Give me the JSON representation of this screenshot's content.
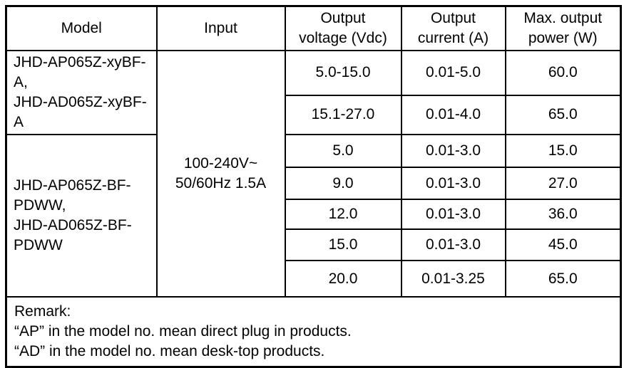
{
  "document": {
    "table": {
      "headers": {
        "model": "Model",
        "input": "Input",
        "output_voltage": "Output\nvoltage (Vdc)",
        "output_current": "Output\ncurrent (A)",
        "max_output_power": "Max. output\npower (W)"
      },
      "model_groups": [
        {
          "models": "JHD-AP065Z-xyBF-A,\nJHD-AD065Z-xyBF-A"
        },
        {
          "models": "JHD-AP065Z-BF-PDWW,\nJHD-AD065Z-BF-PDWW"
        }
      ],
      "input_value": "100-240V~\n50/60Hz 1.5A",
      "rows": [
        {
          "voltage": "5.0-15.0",
          "current": "0.01-5.0",
          "power": "60.0"
        },
        {
          "voltage": "15.1-27.0",
          "current": "0.01-4.0",
          "power": "65.0"
        },
        {
          "voltage": "5.0",
          "current": "0.01-3.0",
          "power": "15.0"
        },
        {
          "voltage": "9.0",
          "current": "0.01-3.0",
          "power": "27.0"
        },
        {
          "voltage": "12.0",
          "current": "0.01-3.0",
          "power": "36.0"
        },
        {
          "voltage": "15.0",
          "current": "0.01-3.0",
          "power": "45.0"
        },
        {
          "voltage": "20.0",
          "current": "0.01-3.25",
          "power": "65.0"
        }
      ],
      "remark": "Remark:\n“AP” in the model no. mean direct plug in products.\n“AD” in the model no. mean desk-top products.",
      "colors": {
        "border": "#000000",
        "text": "#000000",
        "background": "#ffffff"
      }
    }
  }
}
